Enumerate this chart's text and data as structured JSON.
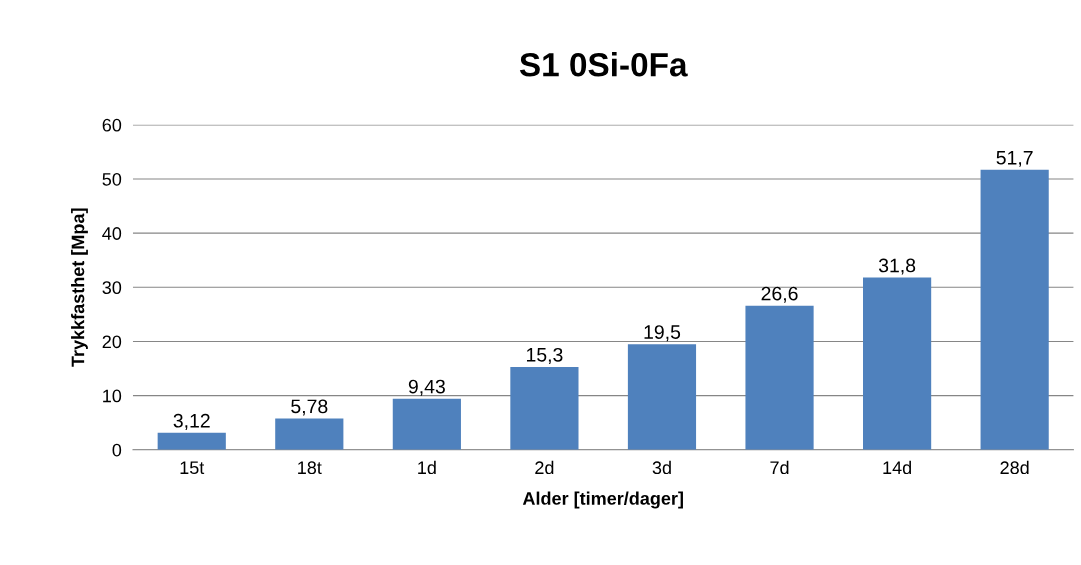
{
  "chart_data": {
    "type": "bar",
    "title": "S1 0Si-0Fa",
    "xlabel": "Alder [timer/dager]",
    "ylabel": "Trykkfasthet [Mpa]",
    "categories": [
      "15t",
      "18t",
      "1d",
      "2d",
      "3d",
      "7d",
      "14d",
      "28d"
    ],
    "values": [
      3.12,
      5.78,
      9.43,
      15.3,
      19.5,
      26.6,
      31.8,
      51.7
    ],
    "value_labels": [
      "3,12",
      "5,78",
      "9,43",
      "15,3",
      "19,5",
      "26,6",
      "31,8",
      "51,7"
    ],
    "color": "#4f81bd",
    "ylim": [
      0,
      60
    ],
    "yticks": [
      0,
      10,
      20,
      30,
      40,
      50,
      60
    ],
    "grid": "y",
    "legend": false
  }
}
